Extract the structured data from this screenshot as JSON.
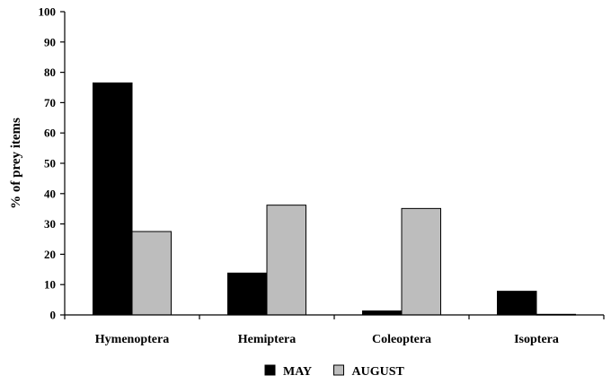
{
  "chart_data": {
    "type": "bar",
    "ylabel": "% of prey items",
    "xlabel": "",
    "ylim": [
      0,
      100
    ],
    "yticks": [
      0,
      10,
      20,
      30,
      40,
      50,
      60,
      70,
      80,
      90,
      100
    ],
    "categories": [
      "Hymenoptera",
      "Hemiptera",
      "Coleoptera",
      "Isoptera"
    ],
    "series": [
      {
        "name": "MAY",
        "color": "#000000",
        "values": [
          76.5,
          13.8,
          1.3,
          7.8
        ]
      },
      {
        "name": "AUGUST",
        "color": "#bdbdbd",
        "values": [
          27.5,
          36.2,
          35.1,
          0.2
        ]
      }
    ],
    "grid": false,
    "legend_position": "bottom-center"
  }
}
